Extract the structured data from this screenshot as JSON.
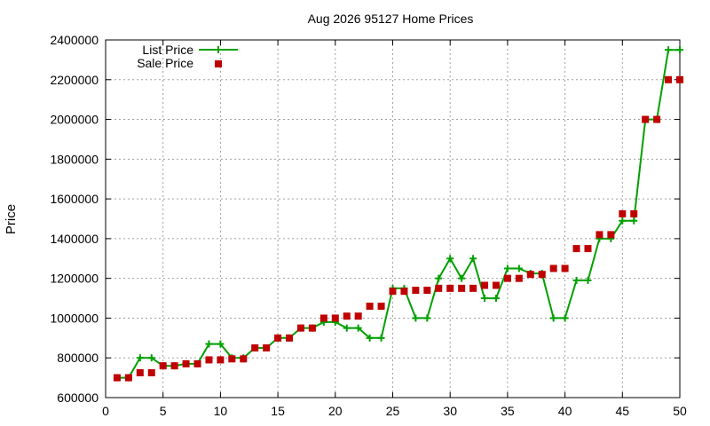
{
  "chart_data": {
    "type": "line",
    "title": "Aug 2026 95127 Home Prices",
    "xlabel": "",
    "ylabel": "Price",
    "xlim": [
      0,
      50
    ],
    "ylim": [
      600000,
      2400000
    ],
    "x_ticks": [
      "0",
      "5",
      "10",
      "15",
      "20",
      "25",
      "30",
      "35",
      "40",
      "45",
      "50"
    ],
    "y_ticks": [
      "600000",
      "800000",
      "1000000",
      "1200000",
      "1400000",
      "1600000",
      "1800000",
      "2000000",
      "2200000",
      "2400000"
    ],
    "grid": true,
    "legend_position": "top-left",
    "colors": {
      "list": "#00a000",
      "sale": "#c00000"
    },
    "series": [
      {
        "name": "List Price",
        "style": "line-with-plus-markers",
        "x": [
          1,
          2,
          3,
          4,
          5,
          6,
          7,
          8,
          9,
          10,
          11,
          12,
          13,
          14,
          15,
          16,
          17,
          18,
          19,
          20,
          21,
          22,
          23,
          24,
          25,
          26,
          27,
          28,
          29,
          30,
          31,
          32,
          33,
          34,
          35,
          36,
          37,
          38,
          39,
          40,
          41,
          42,
          43,
          44,
          45,
          46,
          47,
          48,
          49,
          50
        ],
        "y": [
          700000,
          700000,
          800000,
          800000,
          760000,
          760000,
          770000,
          770000,
          870000,
          870000,
          800000,
          800000,
          850000,
          850000,
          900000,
          900000,
          950000,
          950000,
          980000,
          980000,
          950000,
          950000,
          900000,
          900000,
          1150000,
          1150000,
          1000000,
          1000000,
          1200000,
          1300000,
          1200000,
          1300000,
          1100000,
          1100000,
          1250000,
          1250000,
          1225000,
          1225000,
          1000000,
          1000000,
          1190000,
          1190000,
          1400000,
          1400000,
          1490000,
          1490000,
          2000000,
          2000000,
          2350000,
          2350000
        ]
      },
      {
        "name": "Sale Price",
        "style": "square-markers",
        "x": [
          1,
          2,
          3,
          4,
          5,
          6,
          7,
          8,
          9,
          10,
          11,
          12,
          13,
          14,
          15,
          16,
          17,
          18,
          19,
          20,
          21,
          22,
          23,
          24,
          25,
          26,
          27,
          28,
          29,
          30,
          31,
          32,
          33,
          34,
          35,
          36,
          37,
          38,
          39,
          40,
          41,
          42,
          43,
          44,
          45,
          46,
          47,
          48,
          49,
          50
        ],
        "y": [
          700000,
          700000,
          725000,
          725000,
          760000,
          760000,
          770000,
          770000,
          790000,
          790000,
          795000,
          795000,
          850000,
          850000,
          900000,
          900000,
          950000,
          950000,
          1000000,
          1000000,
          1010000,
          1010000,
          1060000,
          1060000,
          1135000,
          1135000,
          1140000,
          1140000,
          1150000,
          1150000,
          1150000,
          1150000,
          1165000,
          1165000,
          1200000,
          1200000,
          1220000,
          1220000,
          1250000,
          1250000,
          1350000,
          1350000,
          1420000,
          1420000,
          1525000,
          1525000,
          2000000,
          2000000,
          2200000,
          2200000
        ]
      }
    ]
  }
}
